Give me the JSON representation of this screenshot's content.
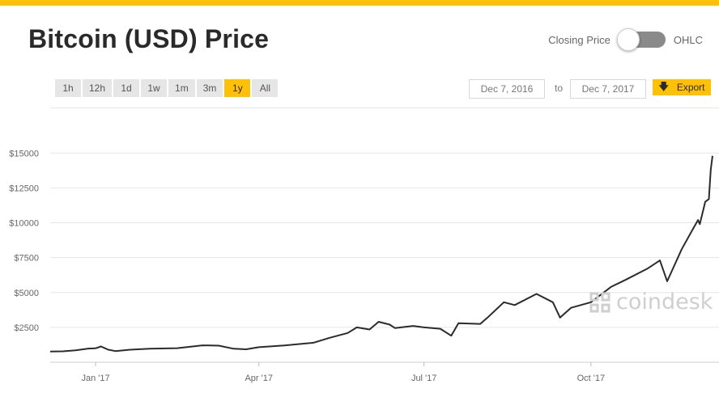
{
  "page": {
    "title": "Bitcoin (USD) Price"
  },
  "mode_toggle": {
    "left_label": "Closing Price",
    "right_label": "OHLC"
  },
  "range_tabs": [
    {
      "label": "1h",
      "active": false
    },
    {
      "label": "12h",
      "active": false
    },
    {
      "label": "1d",
      "active": false
    },
    {
      "label": "1w",
      "active": false
    },
    {
      "label": "1m",
      "active": false
    },
    {
      "label": "3m",
      "active": false
    },
    {
      "label": "1y",
      "active": true
    },
    {
      "label": "All",
      "active": false
    }
  ],
  "date_range": {
    "from": "Dec 7, 2016",
    "separator": "to",
    "to": "Dec 7, 2017"
  },
  "export": {
    "label": "Export",
    "icon": "download-arrow-icon"
  },
  "watermark": {
    "text": "coindesk",
    "icon": "coindesk-logo-icon"
  },
  "colors": {
    "accent": "#ffc107",
    "line": "#2b2b2b",
    "grid": "#e6e6e6",
    "toggle": "#8a8a8a"
  },
  "chart_data": {
    "type": "line",
    "title": "",
    "xlabel": "",
    "ylabel": "",
    "x_range": [
      "2016-12-07",
      "2017-12-07"
    ],
    "ylim": [
      0,
      16000
    ],
    "y_ticks": [
      2500,
      5000,
      7500,
      10000,
      12500,
      15000
    ],
    "y_tick_labels": [
      "$2500",
      "$5000",
      "$7500",
      "$10000",
      "$12500",
      "$15000"
    ],
    "x_ticks": [
      "2017-01-01",
      "2017-04-01",
      "2017-07-01",
      "2017-10-01"
    ],
    "x_tick_labels": [
      "Jan '17",
      "Apr '17",
      "Jul '17",
      "Oct '17"
    ],
    "grid": true,
    "series": [
      {
        "x": [
          "2016-12-07",
          "2016-12-14",
          "2016-12-21",
          "2016-12-28",
          "2017-01-01",
          "2017-01-04",
          "2017-01-08",
          "2017-01-12",
          "2017-01-20",
          "2017-01-31",
          "2017-02-15",
          "2017-03-01",
          "2017-03-10",
          "2017-03-18",
          "2017-03-25",
          "2017-04-01",
          "2017-04-15",
          "2017-05-01",
          "2017-05-10",
          "2017-05-20",
          "2017-05-25",
          "2017-06-01",
          "2017-06-06",
          "2017-06-12",
          "2017-06-15",
          "2017-06-25",
          "2017-07-01",
          "2017-07-10",
          "2017-07-16",
          "2017-07-20",
          "2017-08-01",
          "2017-08-05",
          "2017-08-14",
          "2017-08-20",
          "2017-09-01",
          "2017-09-10",
          "2017-09-14",
          "2017-09-20",
          "2017-10-01",
          "2017-10-12",
          "2017-10-20",
          "2017-11-01",
          "2017-11-08",
          "2017-11-12",
          "2017-11-20",
          "2017-11-26",
          "2017-11-29",
          "2017-11-30",
          "2017-12-03",
          "2017-12-05",
          "2017-12-06",
          "2017-12-07"
        ],
        "y": [
          770,
          780,
          860,
          980,
          1000,
          1130,
          900,
          800,
          900,
          970,
          1010,
          1210,
          1190,
          970,
          930,
          1080,
          1200,
          1400,
          1750,
          2100,
          2500,
          2350,
          2900,
          2700,
          2450,
          2600,
          2500,
          2400,
          1900,
          2800,
          2750,
          3200,
          4300,
          4100,
          4900,
          4300,
          3200,
          3900,
          4300,
          5400,
          5900,
          6700,
          7300,
          5800,
          8100,
          9500,
          10200,
          9900,
          11500,
          11700,
          13800,
          14800
        ]
      }
    ]
  }
}
